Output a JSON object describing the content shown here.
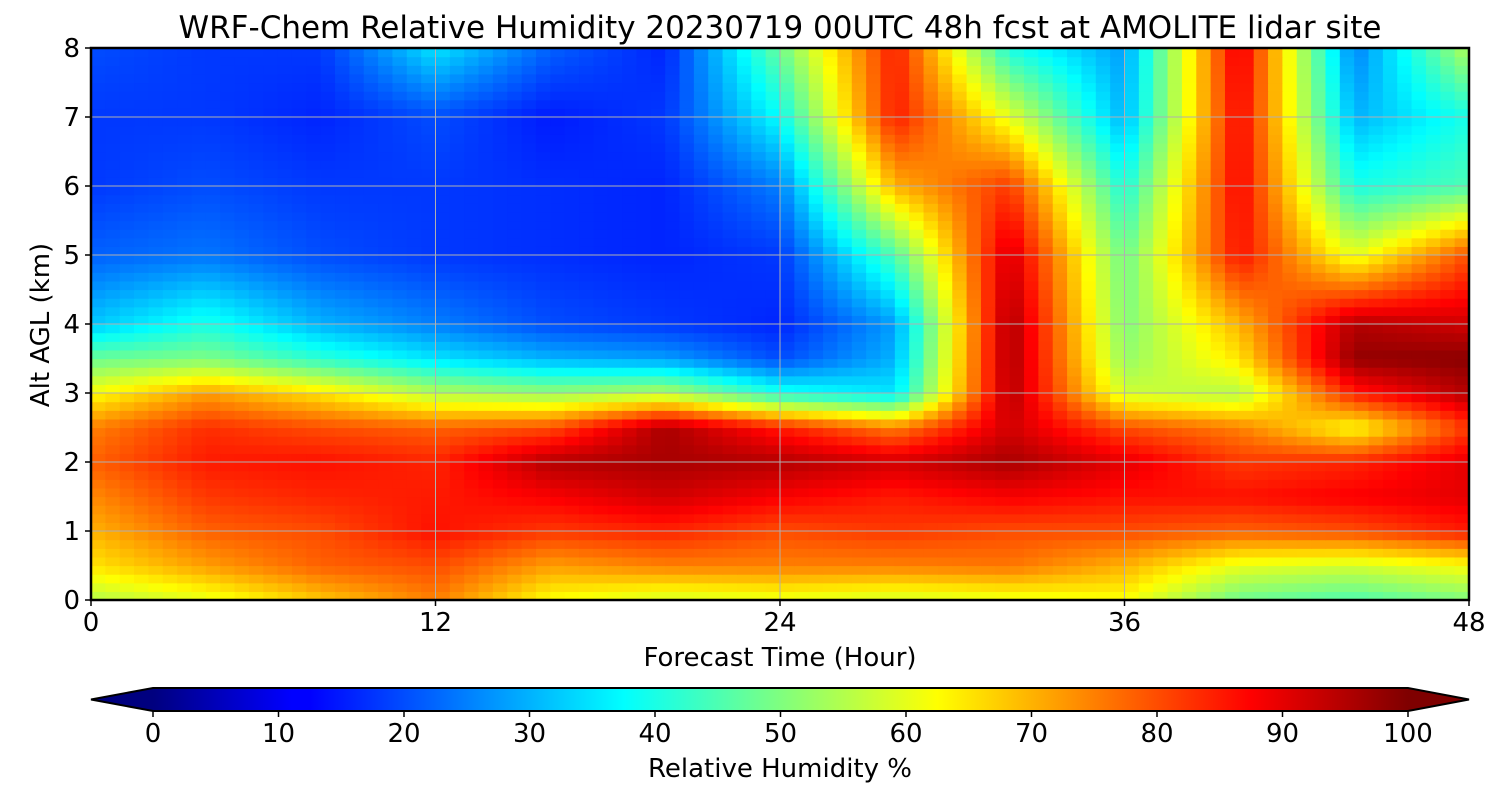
{
  "chart_data": {
    "type": "heatmap",
    "title": "WRF-Chem Relative Humidity 20230719 00UTC 48h fcst at AMOLITE lidar site",
    "xlabel": "Forecast Time (Hour)",
    "ylabel": "Alt AGL (km)",
    "xlim": [
      0,
      48
    ],
    "ylim": [
      0,
      8
    ],
    "x_ticks": [
      "0",
      "12",
      "24",
      "36",
      "48"
    ],
    "y_ticks": [
      "0",
      "1",
      "2",
      "3",
      "4",
      "5",
      "6",
      "7",
      "8"
    ],
    "grid": true,
    "colormap": "jet",
    "colorbar": {
      "label": "Relative Humidity %",
      "range": [
        0,
        100
      ],
      "extend": "both",
      "ticks": [
        "0",
        "10",
        "20",
        "30",
        "40",
        "50",
        "60",
        "70",
        "80",
        "90",
        "100"
      ]
    },
    "x": [
      0,
      4,
      8,
      12,
      16,
      20,
      24,
      28,
      32,
      36,
      40,
      44,
      48
    ],
    "y": [
      0,
      0.5,
      1,
      1.5,
      2,
      2.5,
      3,
      3.5,
      4,
      5,
      6,
      7,
      8
    ],
    "z": [
      [
        55,
        60,
        68,
        75,
        62,
        58,
        60,
        58,
        60,
        62,
        48,
        45,
        50
      ],
      [
        65,
        72,
        78,
        80,
        72,
        75,
        75,
        75,
        76,
        70,
        60,
        58,
        62
      ],
      [
        70,
        78,
        80,
        86,
        82,
        84,
        80,
        82,
        80,
        80,
        78,
        80,
        85
      ],
      [
        74,
        82,
        84,
        85,
        88,
        92,
        88,
        85,
        88,
        86,
        86,
        88,
        90
      ],
      [
        78,
        85,
        86,
        84,
        95,
        96,
        95,
        92,
        96,
        90,
        82,
        84,
        90
      ],
      [
        75,
        83,
        80,
        78,
        80,
        96,
        85,
        75,
        92,
        80,
        75,
        62,
        82
      ],
      [
        62,
        72,
        65,
        55,
        52,
        55,
        40,
        35,
        95,
        58,
        55,
        85,
        95
      ],
      [
        48,
        50,
        42,
        35,
        30,
        28,
        20,
        30,
        96,
        52,
        65,
        98,
        99
      ],
      [
        32,
        40,
        30,
        25,
        20,
        18,
        16,
        28,
        96,
        50,
        70,
        95,
        92
      ],
      [
        22,
        24,
        20,
        18,
        17,
        16,
        18,
        45,
        92,
        48,
        86,
        60,
        80
      ],
      [
        18,
        20,
        18,
        18,
        17,
        16,
        25,
        70,
        82,
        40,
        88,
        40,
        45
      ],
      [
        18,
        18,
        16,
        20,
        15,
        18,
        38,
        85,
        60,
        30,
        88,
        30,
        40
      ],
      [
        20,
        18,
        18,
        35,
        22,
        16,
        48,
        85,
        40,
        28,
        90,
        25,
        55
      ]
    ]
  }
}
